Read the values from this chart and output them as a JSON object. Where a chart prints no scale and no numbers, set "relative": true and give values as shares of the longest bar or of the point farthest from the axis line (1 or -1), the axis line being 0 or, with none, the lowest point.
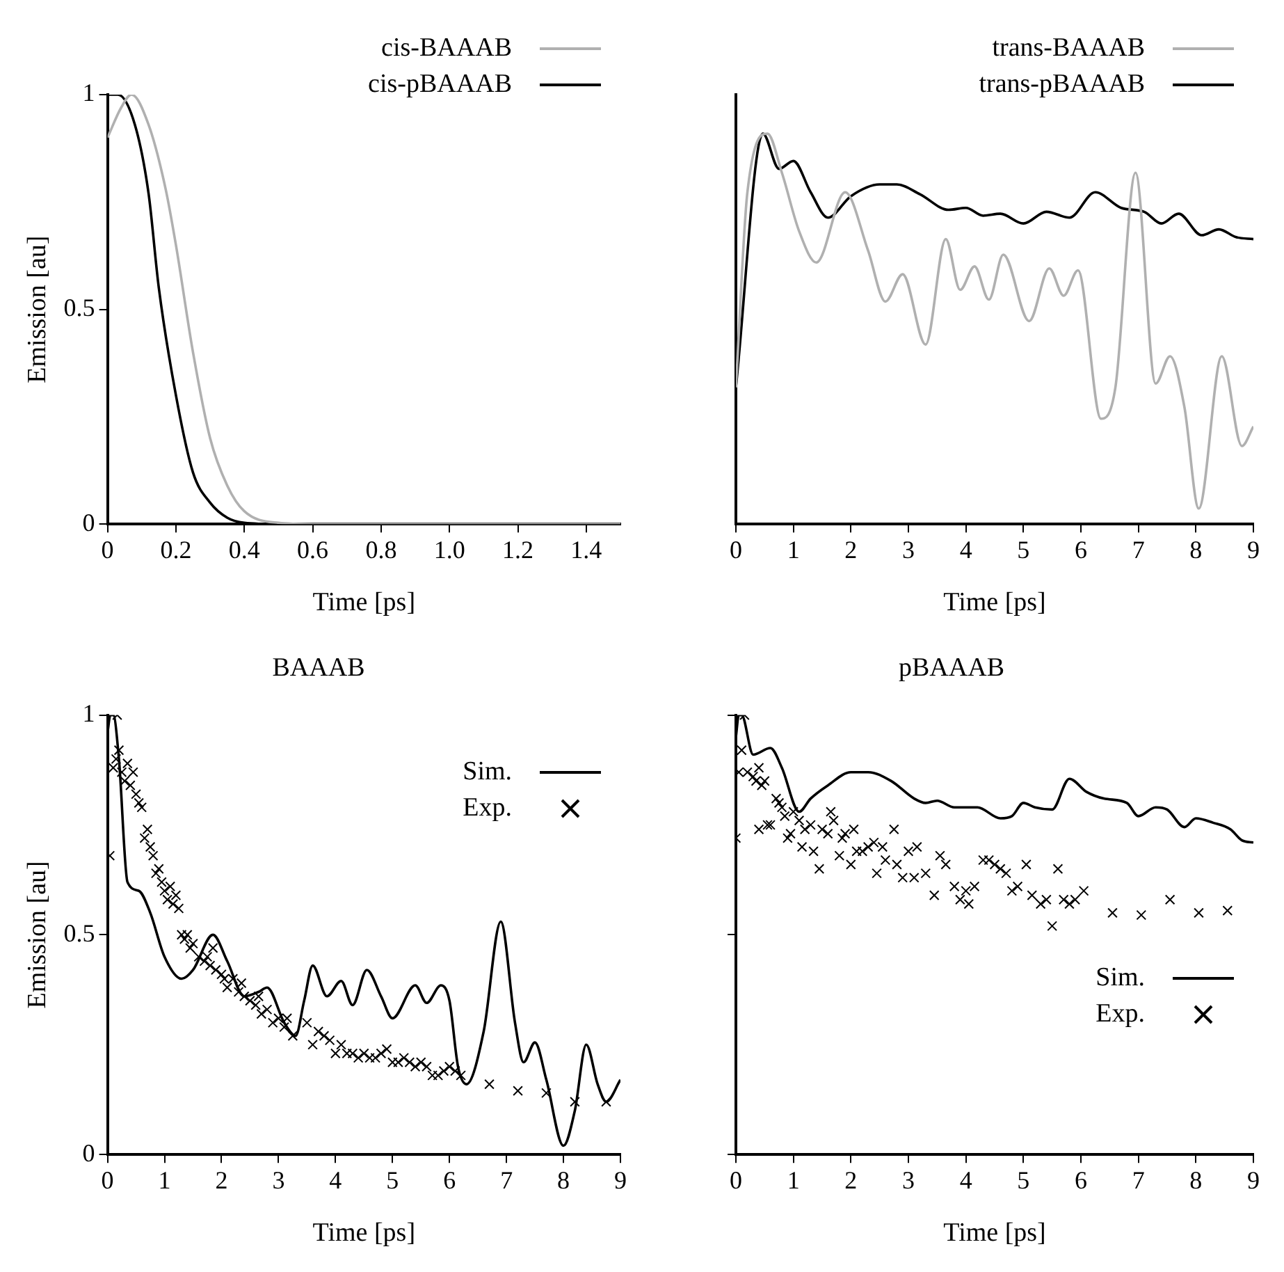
{
  "chart_data": [
    {
      "type": "line",
      "xlabel": "Time [ps]",
      "ylabel": "Emission [au]",
      "xlim": [
        0,
        1.5
      ],
      "xticks": [
        {
          "value": 0,
          "label": "0"
        },
        {
          "value": 0.2,
          "label": "0.2"
        },
        {
          "value": 0.4,
          "label": "0.4"
        },
        {
          "value": 0.6,
          "label": "0.6"
        },
        {
          "value": 0.8,
          "label": "0.8"
        },
        {
          "value": 1.0,
          "label": "1.0"
        },
        {
          "value": 1.2,
          "label": "1.2"
        },
        {
          "value": 1.4,
          "label": "1.4"
        }
      ],
      "ylim": [
        0,
        1
      ],
      "yticks": [
        0,
        0.5,
        1
      ],
      "grid": false,
      "legend": "top right",
      "marker": "none",
      "line_style": "solid",
      "series": [
        {
          "name": "cis-BAAAB",
          "color": "#b0b0b0",
          "x": [
            0,
            0.04,
            0.07,
            0.12,
            0.17,
            0.2,
            0.25,
            0.3,
            0.35,
            0.4,
            0.5,
            0.6,
            1.5
          ],
          "values": [
            0.9,
            0.97,
            1.0,
            0.93,
            0.78,
            0.65,
            0.4,
            0.2,
            0.09,
            0.03,
            0.003,
            0,
            0
          ]
        },
        {
          "name": "cis-pBAAAB",
          "color": "#000000",
          "x": [
            0,
            0.03,
            0.08,
            0.12,
            0.15,
            0.2,
            0.25,
            0.3,
            0.35,
            0.4,
            0.5,
            1.5
          ],
          "values": [
            1.0,
            1.0,
            0.93,
            0.77,
            0.55,
            0.3,
            0.12,
            0.05,
            0.015,
            0.003,
            0,
            0
          ]
        }
      ]
    },
    {
      "type": "line",
      "xlabel": "Time [ps]",
      "xlim": [
        0,
        9
      ],
      "xticks": [
        0,
        1,
        2,
        3,
        4,
        5,
        6,
        7,
        8,
        9
      ],
      "relative": true,
      "tick_labels": "x",
      "grid": false,
      "legend": "top right",
      "marker": "none",
      "line_style": "solid",
      "series": [
        {
          "name": "trans-BAAAB",
          "color": "#b0b0b0",
          "x": [
            0,
            0.2,
            0.55,
            0.8,
            1.1,
            1.4,
            1.9,
            2.3,
            2.6,
            2.9,
            3.3,
            3.65,
            3.9,
            4.15,
            4.4,
            4.65,
            5.1,
            5.45,
            5.7,
            5.95,
            6.35,
            6.6,
            6.95,
            7.3,
            7.55,
            7.8,
            8.05,
            8.45,
            8.8,
            9
          ],
          "values": [
            0.35,
            0.85,
            1.0,
            0.9,
            0.75,
            0.67,
            0.85,
            0.7,
            0.57,
            0.64,
            0.46,
            0.73,
            0.6,
            0.66,
            0.575,
            0.69,
            0.52,
            0.655,
            0.585,
            0.65,
            0.27,
            0.35,
            0.9,
            0.36,
            0.43,
            0.3,
            0.04,
            0.43,
            0.2,
            0.25
          ]
        },
        {
          "name": "trans-pBAAAB",
          "color": "#000000",
          "x": [
            0,
            0.47,
            0.75,
            1.0,
            1.3,
            1.6,
            2.0,
            2.5,
            2.8,
            3.2,
            3.7,
            4.0,
            4.3,
            4.6,
            5.0,
            5.4,
            5.8,
            6.25,
            6.7,
            7.1,
            7.4,
            7.7,
            8.1,
            8.4,
            8.7,
            9
          ],
          "values": [
            0.35,
            1.0,
            0.91,
            0.93,
            0.85,
            0.785,
            0.84,
            0.87,
            0.87,
            0.845,
            0.805,
            0.81,
            0.79,
            0.795,
            0.77,
            0.8,
            0.785,
            0.85,
            0.81,
            0.8,
            0.77,
            0.795,
            0.74,
            0.755,
            0.735,
            0.73
          ]
        }
      ]
    },
    {
      "type": "line",
      "title": "BAAAB",
      "xlabel": "Time [ps]",
      "ylabel": "Emission [au]",
      "xlim": [
        0,
        9
      ],
      "xticks": [
        0,
        1,
        2,
        3,
        4,
        5,
        6,
        7,
        8,
        9
      ],
      "ylim": [
        0,
        1
      ],
      "yticks": [
        0,
        0.5,
        1
      ],
      "grid": false,
      "legend": "top right",
      "marker": "none",
      "line_style": "solid",
      "series": [
        {
          "name": "Sim.",
          "color": "#000000",
          "x": [
            0,
            0.05,
            0.1,
            0.2,
            0.35,
            0.55,
            0.75,
            1.0,
            1.3,
            1.5,
            1.85,
            2.1,
            2.4,
            2.65,
            2.8,
            3.1,
            3.3,
            3.45,
            3.6,
            3.85,
            4.1,
            4.3,
            4.55,
            4.8,
            5.0,
            5.4,
            5.6,
            5.85,
            6.0,
            6.15,
            6.3,
            6.6,
            6.9,
            7.15,
            7.3,
            7.5,
            7.7,
            8.0,
            8.2,
            8.4,
            8.6,
            8.75,
            9.0
          ],
          "values": [
            0.96,
            1.0,
            1.0,
            0.9,
            0.62,
            0.6,
            0.55,
            0.45,
            0.4,
            0.42,
            0.5,
            0.44,
            0.36,
            0.37,
            0.38,
            0.3,
            0.27,
            0.35,
            0.43,
            0.36,
            0.395,
            0.34,
            0.42,
            0.36,
            0.31,
            0.385,
            0.345,
            0.385,
            0.35,
            0.2,
            0.16,
            0.28,
            0.53,
            0.3,
            0.21,
            0.255,
            0.17,
            0.02,
            0.1,
            0.25,
            0.16,
            0.12,
            0.17
          ]
        },
        {
          "name": "Exp.",
          "type": "scatter",
          "marker": "cross",
          "color": "#000000",
          "x": [
            0.04,
            0.1,
            0.15,
            0.17,
            0.2,
            0.25,
            0.3,
            0.35,
            0.4,
            0.45,
            0.5,
            0.55,
            0.6,
            0.65,
            0.7,
            0.75,
            0.8,
            0.85,
            0.9,
            0.95,
            1.0,
            1.05,
            1.1,
            1.15,
            1.2,
            1.25,
            1.3,
            1.35,
            1.4,
            1.45,
            1.5,
            1.6,
            1.7,
            1.75,
            1.8,
            1.85,
            1.9,
            2.0,
            2.05,
            2.1,
            2.2,
            2.3,
            2.35,
            2.4,
            2.5,
            2.6,
            2.65,
            2.7,
            2.8,
            2.9,
            3.0,
            3.1,
            3.15,
            3.25,
            3.5,
            3.6,
            3.7,
            3.8,
            3.9,
            4.0,
            4.1,
            4.2,
            4.3,
            4.4,
            4.5,
            4.6,
            4.7,
            4.8,
            4.9,
            5.0,
            5.1,
            5.2,
            5.3,
            5.4,
            5.5,
            5.6,
            5.7,
            5.8,
            5.9,
            6.0,
            6.1,
            6.2,
            6.7,
            7.2,
            7.7,
            8.2,
            8.75
          ],
          "values": [
            0.68,
            0.88,
            0.9,
            1.0,
            0.92,
            0.87,
            0.85,
            0.89,
            0.84,
            0.87,
            0.82,
            0.8,
            0.79,
            0.72,
            0.74,
            0.7,
            0.68,
            0.64,
            0.65,
            0.62,
            0.6,
            0.58,
            0.61,
            0.57,
            0.59,
            0.56,
            0.5,
            0.49,
            0.5,
            0.47,
            0.48,
            0.45,
            0.44,
            0.45,
            0.43,
            0.47,
            0.42,
            0.41,
            0.4,
            0.38,
            0.4,
            0.37,
            0.39,
            0.36,
            0.35,
            0.34,
            0.36,
            0.32,
            0.33,
            0.3,
            0.31,
            0.29,
            0.31,
            0.27,
            0.3,
            0.25,
            0.28,
            0.27,
            0.26,
            0.23,
            0.25,
            0.23,
            0.23,
            0.22,
            0.23,
            0.22,
            0.22,
            0.23,
            0.24,
            0.21,
            0.21,
            0.22,
            0.21,
            0.2,
            0.21,
            0.2,
            0.18,
            0.18,
            0.19,
            0.2,
            0.19,
            0.18,
            0.16,
            0.145,
            0.14,
            0.12,
            0.12
          ]
        }
      ]
    },
    {
      "type": "line",
      "title": "pBAAAB",
      "xlabel": "Time [ps]",
      "xlim": [
        0,
        9
      ],
      "xticks": [
        0,
        1,
        2,
        3,
        4,
        5,
        6,
        7,
        8,
        9
      ],
      "ylim": [
        0,
        1
      ],
      "yticks": [
        {
          "value": 0,
          "label": null
        },
        {
          "value": 0.5,
          "label": null
        },
        {
          "value": 1,
          "label": null
        }
      ],
      "tick_labels": "x",
      "grid": false,
      "legend": "bottom right",
      "marker": "none",
      "line_style": "solid",
      "series": [
        {
          "name": "Sim.",
          "color": "#000000",
          "x": [
            0,
            0.05,
            0.1,
            0.3,
            0.6,
            0.8,
            1.1,
            1.3,
            1.6,
            2.0,
            2.3,
            2.7,
            3.1,
            3.3,
            3.5,
            3.8,
            4.2,
            4.6,
            4.8,
            5.0,
            5.2,
            5.5,
            5.8,
            6.1,
            6.4,
            6.8,
            7.0,
            7.3,
            7.5,
            7.8,
            8.0,
            8.3,
            8.6,
            8.8,
            9.0
          ],
          "values": [
            0.95,
            1.0,
            1.0,
            0.91,
            0.925,
            0.88,
            0.78,
            0.81,
            0.84,
            0.87,
            0.87,
            0.85,
            0.81,
            0.8,
            0.805,
            0.79,
            0.79,
            0.765,
            0.77,
            0.8,
            0.79,
            0.785,
            0.855,
            0.825,
            0.81,
            0.8,
            0.77,
            0.79,
            0.785,
            0.745,
            0.765,
            0.755,
            0.74,
            0.715,
            0.71
          ]
        },
        {
          "name": "Exp.",
          "type": "scatter",
          "marker": "cross",
          "color": "#000000",
          "x": [
            0,
            0.05,
            0.1,
            0.15,
            0.2,
            0.3,
            0.35,
            0.4,
            0.4,
            0.45,
            0.5,
            0.55,
            0.6,
            0.7,
            0.75,
            0.8,
            0.85,
            0.9,
            0.95,
            1.0,
            1.1,
            1.15,
            1.2,
            1.3,
            1.35,
            1.45,
            1.5,
            1.6,
            1.65,
            1.7,
            1.8,
            1.85,
            1.9,
            2.0,
            2.05,
            2.1,
            2.2,
            2.3,
            2.4,
            2.45,
            2.55,
            2.6,
            2.75,
            2.8,
            2.9,
            3.0,
            3.1,
            3.15,
            3.3,
            3.45,
            3.55,
            3.65,
            3.8,
            3.9,
            4.0,
            4.05,
            4.15,
            4.3,
            4.4,
            4.5,
            4.6,
            4.7,
            4.8,
            4.9,
            5.05,
            5.15,
            5.3,
            5.4,
            5.5,
            5.6,
            5.7,
            5.8,
            5.9,
            6.05,
            6.55,
            7.05,
            7.55,
            8.05,
            8.55
          ],
          "values": [
            0.72,
            0.87,
            0.92,
            1.0,
            0.87,
            0.86,
            0.85,
            0.88,
            0.74,
            0.84,
            0.85,
            0.75,
            0.75,
            0.81,
            0.8,
            0.79,
            0.77,
            0.72,
            0.73,
            0.78,
            0.76,
            0.7,
            0.74,
            0.75,
            0.69,
            0.65,
            0.74,
            0.73,
            0.78,
            0.76,
            0.68,
            0.72,
            0.73,
            0.66,
            0.74,
            0.69,
            0.69,
            0.7,
            0.71,
            0.64,
            0.7,
            0.67,
            0.74,
            0.66,
            0.63,
            0.69,
            0.63,
            0.7,
            0.64,
            0.59,
            0.68,
            0.66,
            0.61,
            0.58,
            0.6,
            0.57,
            0.61,
            0.67,
            0.67,
            0.66,
            0.65,
            0.64,
            0.6,
            0.61,
            0.66,
            0.59,
            0.57,
            0.58,
            0.52,
            0.65,
            0.58,
            0.57,
            0.58,
            0.6,
            0.55,
            0.545,
            0.58,
            0.55,
            0.555
          ]
        }
      ]
    }
  ]
}
